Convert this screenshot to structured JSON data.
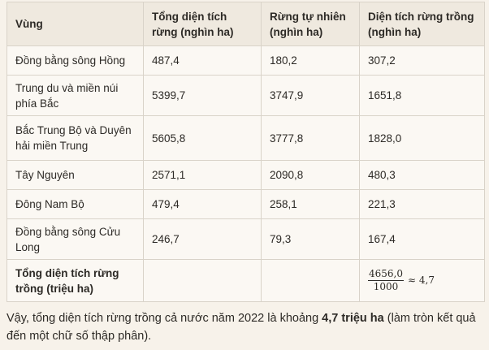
{
  "table": {
    "headers": [
      "Vùng",
      "Tổng diện tích rừng (nghìn ha)",
      "Rừng tự nhiên (nghìn ha)",
      "Diện tích rừng trồng (nghìn ha)"
    ],
    "rows": [
      [
        "Đồng bằng sông Hồng",
        "487,4",
        "180,2",
        "307,2"
      ],
      [
        "Trung du và miền núi phía Bắc",
        "5399,7",
        "3747,9",
        "1651,8"
      ],
      [
        "Bắc Trung Bộ và Duyên hải miền Trung",
        "5605,8",
        "3777,8",
        "1828,0"
      ],
      [
        "Tây Nguyên",
        "2571,1",
        "2090,8",
        "480,3"
      ],
      [
        "Đông Nam Bộ",
        "479,4",
        "258,1",
        "221,3"
      ],
      [
        "Đồng bằng sông Cửu Long",
        "246,7",
        "79,3",
        "167,4"
      ]
    ],
    "total_row": {
      "label": "Tổng diện tích rừng trồng (triệu ha)",
      "c2": "",
      "c3": "",
      "fraction_numerator": "4656,0",
      "fraction_denominator": "1000",
      "approx": "≈ 4,7"
    }
  },
  "conclusion": {
    "before": "Vậy, tổng diện tích rừng trồng cả nước năm 2022 là khoảng ",
    "bold": "4,7 triệu ha",
    "after": " (làm tròn kết quả đến một chữ số thập phân)."
  }
}
